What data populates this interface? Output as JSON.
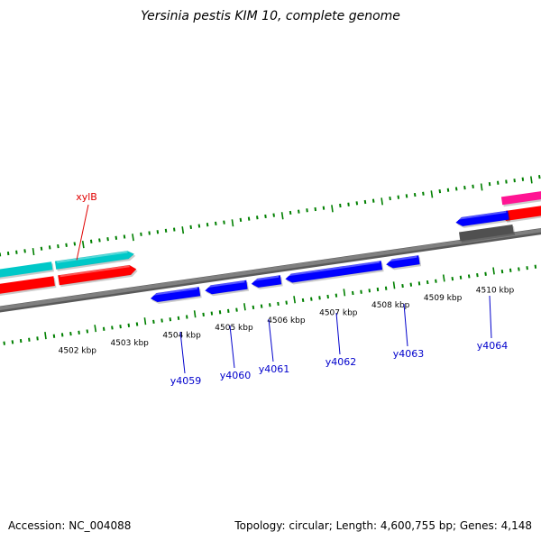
{
  "title": "Yersinia pestis KIM 10, complete genome",
  "footer": {
    "accession": "Accession: NC_004088",
    "stats": "Topology: circular; Length: 4,600,755 bp; Genes: 4,148"
  },
  "colors": {
    "backbone": "#808080",
    "tick": "#008000",
    "forward_cds": "#00c8c8",
    "forward_red": "#ff0000",
    "forward_magenta": "#ff1493",
    "reverse_cds": "#0000ff",
    "reverse_gray": "#505050",
    "label_blue": "#0000cc",
    "label_red": "#e00000"
  },
  "chart_data": {
    "type": "genome_map",
    "kbp_labels": [
      "4502 kbp",
      "4503 kbp",
      "4504 kbp",
      "4505 kbp",
      "4506 kbp",
      "4507 kbp",
      "4508 kbp",
      "4509 kbp",
      "4510 kbp"
    ],
    "forward_genes": [
      {
        "label": "xylB",
        "color": "forward_cds"
      }
    ],
    "reverse_genes": [
      {
        "label": "y4059"
      },
      {
        "label": "y4060"
      },
      {
        "label": "y4061"
      },
      {
        "label": "y4062"
      },
      {
        "label": "y4063"
      },
      {
        "label": "y4064"
      }
    ]
  }
}
